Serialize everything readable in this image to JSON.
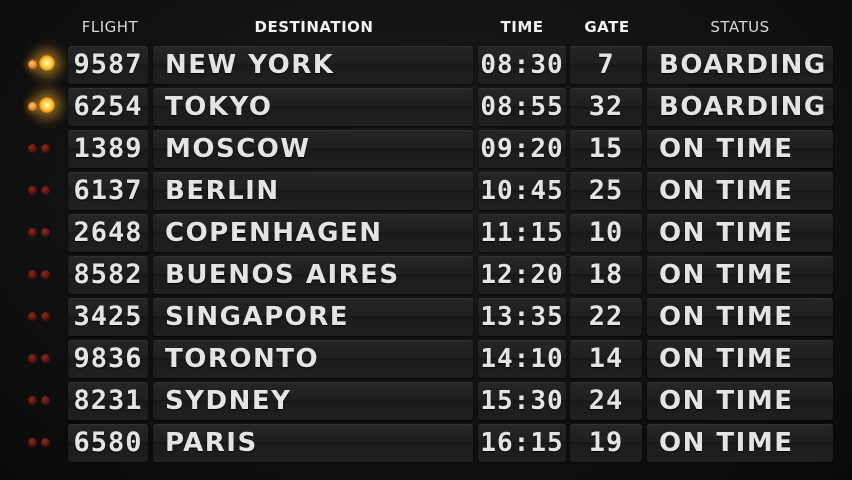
{
  "header": {
    "flight": "FLIGHT",
    "destination": "DESTINATION",
    "time": "TIME",
    "gate": "GATE",
    "status": "STATUS"
  },
  "colors": {
    "background": "#111111",
    "text": "#e4e4e4",
    "light_off": "#4a0e0a",
    "light_on": "#ffb020"
  },
  "flights": [
    {
      "flight": "9587",
      "destination": "NEW YORK",
      "time": "08:30",
      "gate": "7",
      "status": "BOARDING",
      "light_on": true
    },
    {
      "flight": "6254",
      "destination": "TOKYO",
      "time": "08:55",
      "gate": "32",
      "status": "BOARDING",
      "light_on": true
    },
    {
      "flight": "1389",
      "destination": "MOSCOW",
      "time": "09:20",
      "gate": "15",
      "status": "ON TIME",
      "light_on": false
    },
    {
      "flight": "6137",
      "destination": "BERLIN",
      "time": "10:45",
      "gate": "25",
      "status": "ON TIME",
      "light_on": false
    },
    {
      "flight": "2648",
      "destination": "COPENHAGEN",
      "time": "11:15",
      "gate": "10",
      "status": "ON TIME",
      "light_on": false
    },
    {
      "flight": "8582",
      "destination": "BUENOS AIRES",
      "time": "12:20",
      "gate": "18",
      "status": "ON TIME",
      "light_on": false
    },
    {
      "flight": "3425",
      "destination": "SINGAPORE",
      "time": "13:35",
      "gate": "22",
      "status": "ON TIME",
      "light_on": false
    },
    {
      "flight": "9836",
      "destination": "TORONTO",
      "time": "14:10",
      "gate": "14",
      "status": "ON TIME",
      "light_on": false
    },
    {
      "flight": "8231",
      "destination": "SYDNEY",
      "time": "15:30",
      "gate": "24",
      "status": "ON TIME",
      "light_on": false
    },
    {
      "flight": "6580",
      "destination": "PARIS",
      "time": "16:15",
      "gate": "19",
      "status": "ON TIME",
      "light_on": false
    }
  ]
}
